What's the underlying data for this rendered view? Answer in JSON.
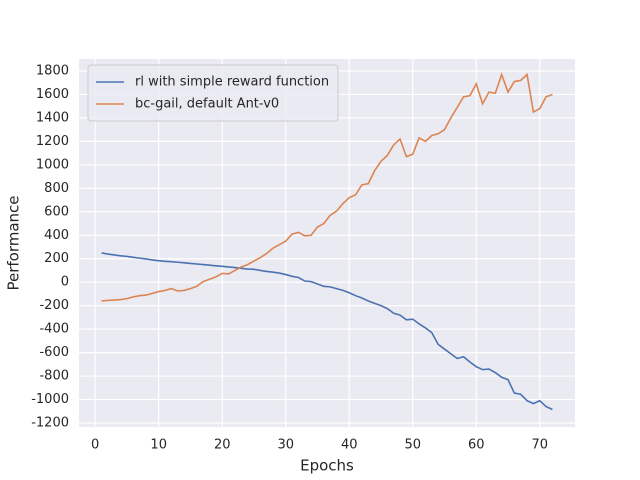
{
  "chart_data": {
    "type": "line",
    "xlabel": "Epochs",
    "ylabel": "Performance",
    "x": [
      1,
      2,
      3,
      4,
      5,
      6,
      7,
      8,
      9,
      10,
      11,
      12,
      13,
      14,
      15,
      16,
      17,
      18,
      19,
      20,
      21,
      22,
      23,
      24,
      25,
      26,
      27,
      28,
      29,
      30,
      31,
      32,
      33,
      34,
      35,
      36,
      37,
      38,
      39,
      40,
      41,
      42,
      43,
      44,
      45,
      46,
      47,
      48,
      49,
      50,
      51,
      52,
      53,
      54,
      55,
      56,
      57,
      58,
      59,
      60,
      61,
      62,
      63,
      64,
      65,
      66,
      67,
      68,
      69,
      70,
      71,
      72
    ],
    "series": [
      {
        "name": "rl with simple reward function",
        "color": "#4c72b0",
        "values": [
          250,
          240,
          232,
          225,
          220,
          212,
          205,
          198,
          190,
          183,
          178,
          175,
          170,
          165,
          160,
          155,
          150,
          145,
          140,
          135,
          130,
          125,
          118,
          112,
          110,
          100,
          92,
          85,
          78,
          65,
          50,
          40,
          10,
          5,
          -15,
          -35,
          -40,
          -55,
          -70,
          -90,
          -115,
          -135,
          -160,
          -180,
          -200,
          -225,
          -265,
          -280,
          -320,
          -315,
          -355,
          -390,
          -430,
          -530,
          -570,
          -610,
          -650,
          -635,
          -680,
          -720,
          -745,
          -740,
          -770,
          -810,
          -830,
          -945,
          -955,
          -1010,
          -1035,
          -1010,
          -1060,
          -1085
        ]
      },
      {
        "name": "bc-gail, default Ant-v0",
        "color": "#dd8452",
        "values": [
          -160,
          -155,
          -152,
          -148,
          -140,
          -125,
          -115,
          -110,
          -95,
          -80,
          -70,
          -55,
          -75,
          -70,
          -55,
          -35,
          5,
          25,
          45,
          75,
          70,
          100,
          130,
          150,
          180,
          210,
          245,
          290,
          320,
          350,
          410,
          425,
          395,
          400,
          470,
          500,
          570,
          605,
          670,
          720,
          745,
          830,
          840,
          950,
          1030,
          1080,
          1170,
          1220,
          1070,
          1090,
          1230,
          1200,
          1250,
          1265,
          1300,
          1400,
          1490,
          1580,
          1590,
          1690,
          1520,
          1620,
          1610,
          1770,
          1620,
          1710,
          1720,
          1770,
          1450,
          1480,
          1580,
          1600
        ]
      }
    ],
    "xlim": [
      -2.55,
      75.55
    ],
    "xticks": [
      0,
      10,
      20,
      30,
      40,
      50,
      60,
      70
    ],
    "ylim": [
      -1234,
      1902
    ],
    "yticks": [
      -1200,
      -1000,
      -800,
      -600,
      -400,
      -200,
      0,
      200,
      400,
      600,
      800,
      1000,
      1200,
      1400,
      1600,
      1800
    ],
    "grid": true,
    "legend": "upper left"
  }
}
